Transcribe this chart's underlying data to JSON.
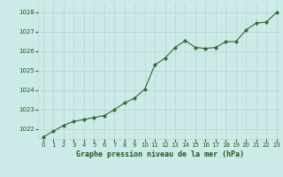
{
  "x": [
    0,
    1,
    2,
    3,
    4,
    5,
    6,
    7,
    8,
    9,
    10,
    11,
    12,
    13,
    14,
    15,
    16,
    17,
    18,
    19,
    20,
    21,
    22,
    23
  ],
  "y": [
    1021.6,
    1021.9,
    1022.2,
    1022.4,
    1022.5,
    1022.6,
    1022.7,
    1023.0,
    1023.35,
    1023.6,
    1024.05,
    1025.3,
    1025.65,
    1026.2,
    1026.55,
    1026.2,
    1026.15,
    1026.2,
    1026.5,
    1026.5,
    1027.1,
    1027.45,
    1027.5,
    1028.0
  ],
  "line_color": "#2d6b2d",
  "marker_color": "#2d6b2d",
  "bg_color": "#cceae8",
  "grid_color": "#b8d4d0",
  "xlabel": "Graphe pression niveau de la mer (hPa)",
  "xlabel_color": "#1a5c1a",
  "tick_label_color": "#1a5c1a",
  "ylim_min": 1021.5,
  "ylim_max": 1028.5,
  "xlim_min": -0.5,
  "xlim_max": 23.5,
  "yticks": [
    1022,
    1023,
    1024,
    1025,
    1026,
    1027,
    1028
  ],
  "xticks": [
    0,
    1,
    2,
    3,
    4,
    5,
    6,
    7,
    8,
    9,
    10,
    11,
    12,
    13,
    14,
    15,
    16,
    17,
    18,
    19,
    20,
    21,
    22,
    23
  ],
  "xlabel_fontsize": 6.0,
  "tick_fontsize": 5.0
}
